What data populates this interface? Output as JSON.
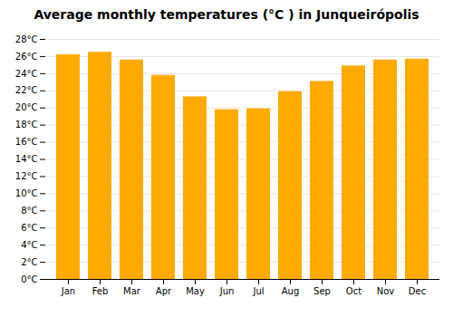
{
  "chart_data": {
    "type": "bar",
    "title": "Average monthly temperatures (°C ) in Junqueirópolis",
    "categories": [
      "Jan",
      "Feb",
      "Mar",
      "Apr",
      "May",
      "Jun",
      "Jul",
      "Aug",
      "Sep",
      "Oct",
      "Nov",
      "Dec"
    ],
    "values": [
      26.2,
      26.5,
      25.6,
      23.8,
      21.3,
      19.8,
      19.9,
      21.9,
      23.1,
      24.9,
      25.6,
      25.7
    ],
    "color": "#FFAA00",
    "ylim": [
      0,
      28
    ],
    "yticks": [
      {
        "value": 0,
        "label": "0°C"
      },
      {
        "value": 2,
        "label": "2°C"
      },
      {
        "value": 4,
        "label": "4°C"
      },
      {
        "value": 6,
        "label": "6°C"
      },
      {
        "value": 8,
        "label": "8°C"
      },
      {
        "value": 10,
        "label": "10°C"
      },
      {
        "value": 12,
        "label": "12°C"
      },
      {
        "value": 14,
        "label": "14°C"
      },
      {
        "value": 16,
        "label": "16°C"
      },
      {
        "value": 18,
        "label": "18°C"
      },
      {
        "value": 20,
        "label": "20°C"
      },
      {
        "value": 22,
        "label": "22°C"
      },
      {
        "value": 24,
        "label": "24°C"
      },
      {
        "value": 26,
        "label": "26°C"
      },
      {
        "value": 28,
        "label": "28°C"
      }
    ],
    "grid": true
  }
}
